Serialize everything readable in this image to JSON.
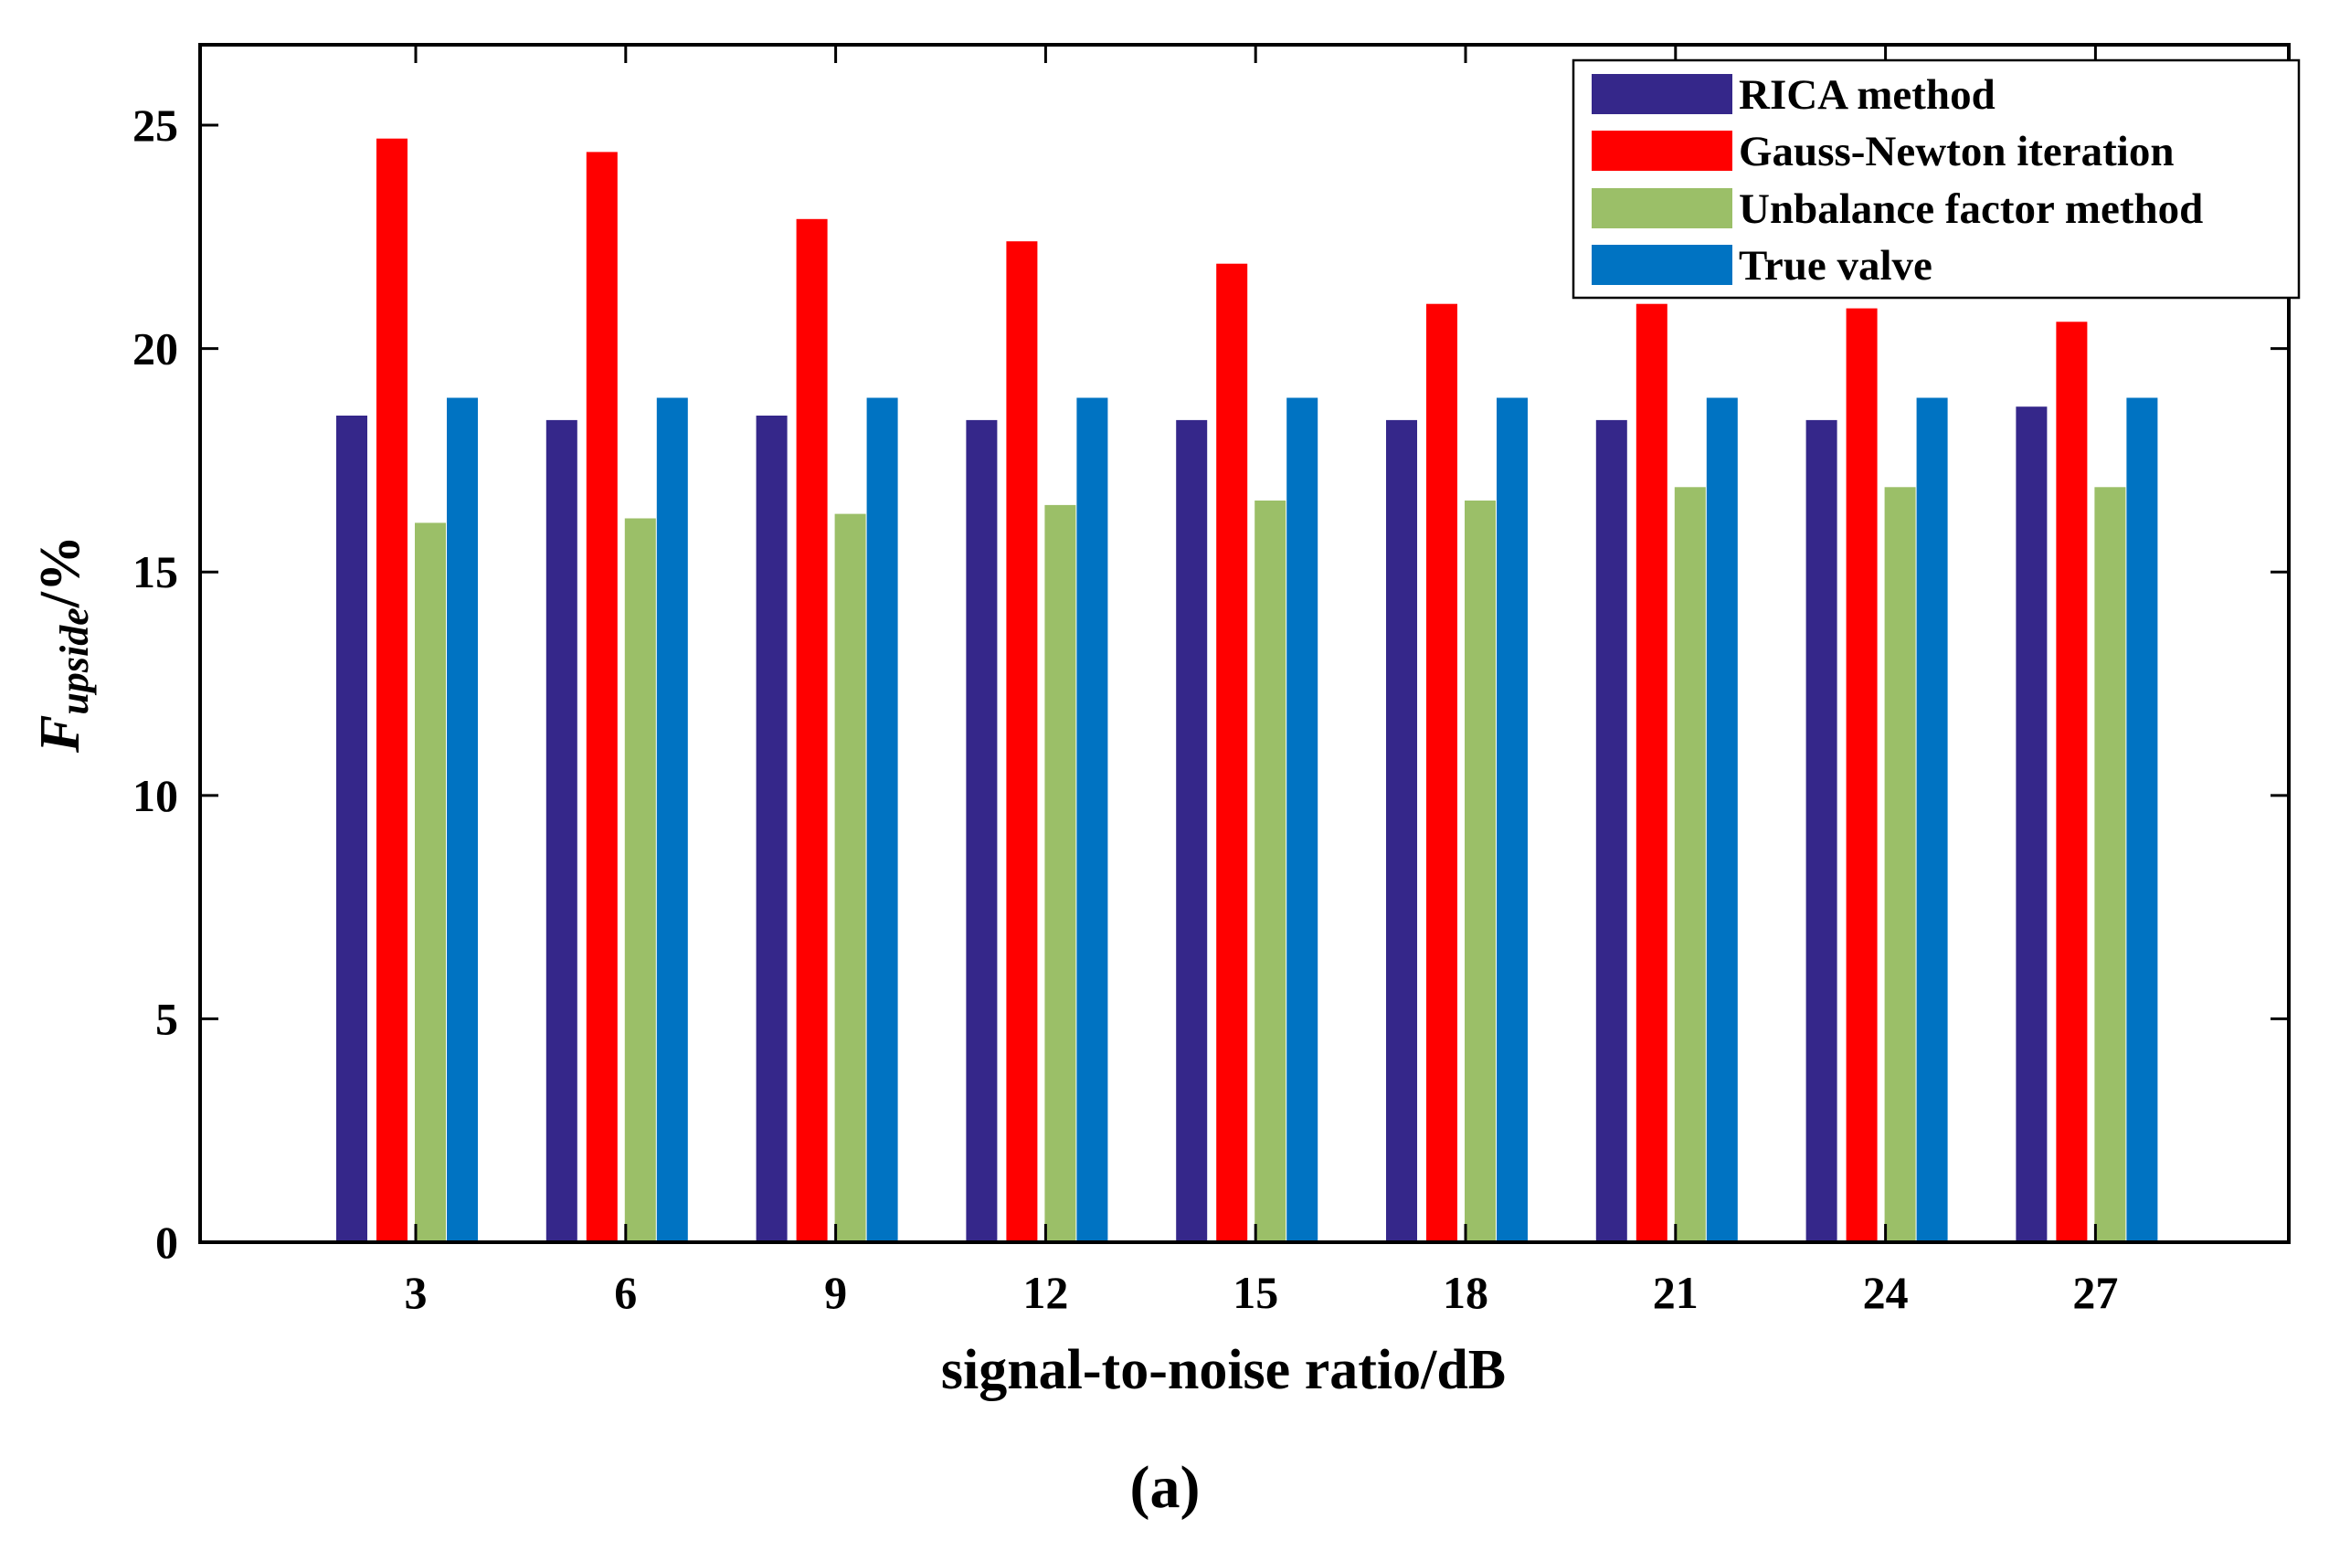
{
  "chart_data": {
    "type": "bar",
    "title": "",
    "xlabel": "signal-to-noise ratio/dB",
    "ylabel": {
      "main": "F",
      "subscript": "upside",
      "suffix": "/%"
    },
    "panel_label": {
      "open": "(",
      "letter": "a",
      "close": ")"
    },
    "categories": [
      "3",
      "6",
      "9",
      "12",
      "15",
      "18",
      "21",
      "24",
      "27"
    ],
    "ylim": [
      0,
      26.8
    ],
    "yticks": [
      "0",
      "5",
      "10",
      "15",
      "20",
      "25"
    ],
    "legend_position": "top-right",
    "series": [
      {
        "name": "RICA method",
        "color": "#35278a",
        "values": [
          18.5,
          18.4,
          18.5,
          18.4,
          18.4,
          18.4,
          18.4,
          18.4,
          18.7
        ]
      },
      {
        "name": "Gauss-Newton iteration",
        "color": "#ff0000",
        "values": [
          24.7,
          24.4,
          22.9,
          22.4,
          21.9,
          21.0,
          21.0,
          20.9,
          20.6
        ]
      },
      {
        "name": "Unbalance factor method",
        "color": "#9bbf68",
        "values": [
          16.1,
          16.2,
          16.3,
          16.5,
          16.6,
          16.6,
          16.9,
          16.9,
          16.9
        ]
      },
      {
        "name": "True valve",
        "color": "#0073c2",
        "values": [
          18.9,
          18.9,
          18.9,
          18.9,
          18.9,
          18.9,
          18.9,
          18.9,
          18.9
        ]
      }
    ]
  }
}
